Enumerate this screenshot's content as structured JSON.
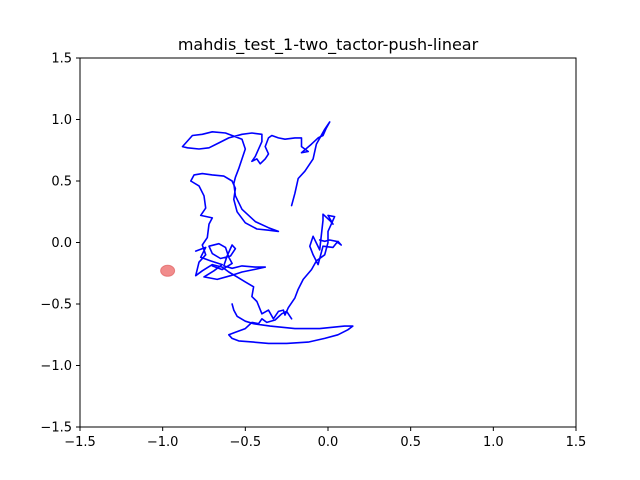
{
  "chart_data": {
    "type": "line",
    "title": "mahdis_test_1-two_tactor-push-linear",
    "xlabel": "",
    "ylabel": "",
    "xlim": [
      -1.5,
      1.5
    ],
    "ylim": [
      -1.5,
      1.5
    ],
    "x_ticks": [
      "−1.5",
      "−1.0",
      "−0.5",
      "0.0",
      "0.5",
      "1.0",
      "1.5"
    ],
    "y_ticks": [
      "−1.5",
      "−1.0",
      "−0.5",
      "0.0",
      "0.5",
      "1.0",
      "1.5"
    ],
    "grid": false,
    "legend": "none",
    "series": [
      {
        "type": "line",
        "color": "#0000ff",
        "points": [
          [
            -0.05,
            0.02
          ],
          [
            -0.02,
            0.01
          ],
          [
            0.01,
            0.02
          ],
          [
            0.05,
            0.01
          ],
          [
            0.08,
            -0.02
          ],
          [
            0.06,
            0.01
          ],
          [
            0.03,
            -0.04
          ],
          [
            -0.03,
            -0.03
          ],
          [
            -0.06,
            -0.18
          ],
          [
            -0.09,
            -0.1
          ],
          [
            -0.11,
            -0.03
          ],
          [
            -0.09,
            0.05
          ],
          [
            -0.05,
            -0.06
          ],
          [
            -0.03,
            0.18
          ],
          [
            -0.03,
            0.23
          ],
          [
            0.01,
            0.18
          ],
          [
            0.03,
            0.15
          ],
          [
            0.0,
            0.22
          ],
          [
            0.04,
            0.21
          ],
          [
            0.0,
            0.09
          ],
          [
            0.0,
            0.0
          ],
          [
            -0.02,
            -0.1
          ],
          [
            -0.07,
            -0.15
          ],
          [
            -0.1,
            -0.22
          ],
          [
            -0.15,
            -0.3
          ],
          [
            -0.18,
            -0.38
          ],
          [
            -0.2,
            -0.45
          ],
          [
            -0.24,
            -0.53
          ],
          [
            -0.26,
            -0.59
          ],
          [
            -0.27,
            -0.55
          ],
          [
            -0.3,
            -0.56
          ],
          [
            -0.33,
            -0.62
          ],
          [
            -0.36,
            -0.55
          ],
          [
            -0.4,
            -0.58
          ],
          [
            -0.43,
            -0.48
          ],
          [
            -0.46,
            -0.44
          ],
          [
            -0.45,
            -0.36
          ],
          [
            -0.5,
            -0.32
          ],
          [
            -0.55,
            -0.28
          ],
          [
            -0.6,
            -0.24
          ],
          [
            -0.64,
            -0.2
          ],
          [
            -0.7,
            -0.18
          ],
          [
            -0.76,
            -0.23
          ],
          [
            -0.8,
            -0.27
          ],
          [
            -0.78,
            -0.16
          ],
          [
            -0.74,
            -0.1
          ],
          [
            -0.76,
            -0.02
          ],
          [
            -0.73,
            0.04
          ],
          [
            -0.72,
            0.15
          ],
          [
            -0.7,
            0.2
          ],
          [
            -0.77,
            0.22
          ],
          [
            -0.74,
            0.28
          ],
          [
            -0.75,
            0.38
          ],
          [
            -0.78,
            0.46
          ],
          [
            -0.83,
            0.5
          ],
          [
            -0.81,
            0.55
          ],
          [
            -0.76,
            0.56
          ],
          [
            -0.7,
            0.55
          ],
          [
            -0.63,
            0.54
          ],
          [
            -0.58,
            0.5
          ],
          [
            -0.56,
            0.44
          ],
          [
            -0.57,
            0.35
          ],
          [
            -0.55,
            0.25
          ],
          [
            -0.5,
            0.16
          ],
          [
            -0.43,
            0.11
          ],
          [
            -0.36,
            0.1
          ],
          [
            -0.3,
            0.09
          ],
          [
            -0.36,
            0.12
          ],
          [
            -0.44,
            0.17
          ],
          [
            -0.52,
            0.27
          ],
          [
            -0.56,
            0.38
          ],
          [
            -0.57,
            0.48
          ],
          [
            -0.56,
            0.53
          ],
          [
            -0.54,
            0.6
          ],
          [
            -0.52,
            0.68
          ],
          [
            -0.5,
            0.76
          ],
          [
            -0.52,
            0.84
          ],
          [
            -0.56,
            0.86
          ],
          [
            -0.62,
            0.89
          ],
          [
            -0.7,
            0.9
          ],
          [
            -0.76,
            0.88
          ],
          [
            -0.82,
            0.87
          ],
          [
            -0.88,
            0.78
          ],
          [
            -0.85,
            0.77
          ],
          [
            -0.78,
            0.76
          ],
          [
            -0.72,
            0.77
          ],
          [
            -0.66,
            0.81
          ],
          [
            -0.6,
            0.85
          ],
          [
            -0.52,
            0.88
          ],
          [
            -0.46,
            0.89
          ],
          [
            -0.4,
            0.88
          ],
          [
            -0.4,
            0.82
          ],
          [
            -0.44,
            0.7
          ],
          [
            -0.46,
            0.66
          ],
          [
            -0.43,
            0.68
          ],
          [
            -0.41,
            0.64
          ],
          [
            -0.38,
            0.68
          ],
          [
            -0.36,
            0.72
          ],
          [
            -0.38,
            0.78
          ],
          [
            -0.36,
            0.85
          ],
          [
            -0.34,
            0.87
          ],
          [
            -0.3,
            0.85
          ],
          [
            -0.26,
            0.84
          ],
          [
            -0.2,
            0.85
          ],
          [
            -0.16,
            0.85
          ],
          [
            -0.16,
            0.78
          ],
          [
            -0.12,
            0.74
          ],
          [
            -0.16,
            0.73
          ],
          [
            -0.1,
            0.8
          ],
          [
            -0.06,
            0.85
          ],
          [
            -0.03,
            0.87
          ],
          [
            -0.01,
            0.93
          ],
          [
            0.01,
            0.98
          ],
          [
            -0.02,
            0.92
          ],
          [
            -0.07,
            0.8
          ],
          [
            -0.09,
            0.68
          ],
          [
            -0.14,
            0.58
          ],
          [
            -0.18,
            0.52
          ],
          [
            -0.2,
            0.4
          ],
          [
            -0.22,
            0.3
          ]
        ]
      },
      {
        "type": "line",
        "color": "#0000ff",
        "points": [
          [
            -0.8,
            -0.07
          ],
          [
            -0.74,
            -0.04
          ],
          [
            -0.77,
            -0.12
          ],
          [
            -0.71,
            -0.15
          ],
          [
            -0.64,
            -0.18
          ],
          [
            -0.69,
            -0.23
          ],
          [
            -0.75,
            -0.28
          ],
          [
            -0.67,
            -0.3
          ],
          [
            -0.59,
            -0.27
          ],
          [
            -0.52,
            -0.24
          ],
          [
            -0.45,
            -0.22
          ],
          [
            -0.38,
            -0.2
          ],
          [
            -0.44,
            -0.2
          ],
          [
            -0.52,
            -0.19
          ],
          [
            -0.58,
            -0.21
          ],
          [
            -0.63,
            -0.19
          ],
          [
            -0.61,
            -0.11
          ],
          [
            -0.58,
            -0.02
          ],
          [
            -0.56,
            -0.05
          ],
          [
            -0.59,
            -0.11
          ],
          [
            -0.65,
            -0.13
          ],
          [
            -0.7,
            -0.09
          ],
          [
            -0.72,
            -0.03
          ],
          [
            -0.66,
            -0.01
          ],
          [
            -0.62,
            -0.04
          ],
          [
            -0.6,
            -0.12
          ],
          [
            -0.58,
            -0.17
          ],
          [
            -0.64,
            -0.22
          ],
          [
            -0.7,
            -0.19
          ]
        ]
      },
      {
        "type": "line",
        "color": "#0000ff",
        "points": [
          [
            -0.22,
            -0.62
          ],
          [
            -0.25,
            -0.56
          ],
          [
            -0.28,
            -0.58
          ],
          [
            -0.32,
            -0.63
          ],
          [
            -0.37,
            -0.65
          ],
          [
            -0.4,
            -0.62
          ],
          [
            -0.42,
            -0.66
          ],
          [
            -0.46,
            -0.65
          ],
          [
            -0.5,
            -0.7
          ],
          [
            -0.56,
            -0.73
          ],
          [
            -0.6,
            -0.75
          ],
          [
            -0.58,
            -0.78
          ],
          [
            -0.54,
            -0.8
          ],
          [
            -0.45,
            -0.81
          ],
          [
            -0.36,
            -0.82
          ],
          [
            -0.25,
            -0.82
          ],
          [
            -0.12,
            -0.81
          ],
          [
            -0.02,
            -0.78
          ],
          [
            0.06,
            -0.75
          ],
          [
            0.12,
            -0.71
          ],
          [
            0.15,
            -0.68
          ],
          [
            0.1,
            -0.68
          ],
          [
            -0.05,
            -0.7
          ],
          [
            -0.2,
            -0.7
          ],
          [
            -0.35,
            -0.68
          ],
          [
            -0.45,
            -0.66
          ],
          [
            -0.5,
            -0.64
          ],
          [
            -0.55,
            -0.6
          ],
          [
            -0.57,
            -0.55
          ],
          [
            -0.58,
            -0.5
          ]
        ]
      }
    ],
    "markers": [
      {
        "type": "scatter",
        "x": -0.97,
        "y": -0.23,
        "color": "#f08080",
        "opacity": 0.9
      }
    ]
  }
}
